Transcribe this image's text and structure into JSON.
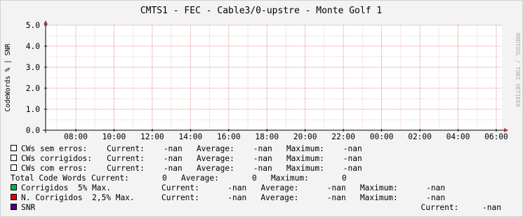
{
  "chart_data": {
    "type": "line",
    "title": "CMTS1 - FEC - Cable3/0-upstre - Monte Golf 1",
    "y_label": "CodeWords % | SNR",
    "watermark": "RRDTOOL / TOBI OETIKER",
    "categories": [
      "08:00",
      "10:00",
      "12:00",
      "14:00",
      "16:00",
      "18:00",
      "20:00",
      "22:00",
      "00:00",
      "02:00",
      "04:00",
      "06:00"
    ],
    "ylim": [
      0,
      5
    ],
    "yticks": [
      {
        "value": 0,
        "label": "0.0"
      },
      {
        "value": 1,
        "label": "1.0"
      },
      {
        "value": 2,
        "label": "2.0"
      },
      {
        "value": 3,
        "label": "3.0"
      },
      {
        "value": 4,
        "label": "4.0"
      },
      {
        "value": 5,
        "label": "5.0"
      }
    ],
    "yminorticks": [
      0.5,
      1.5,
      2.5,
      3.5,
      4.5
    ],
    "grid": true,
    "legend": [
      {
        "name": "CWs sem erros:",
        "color": "#ffffff",
        "stats": "Current:    -nan   Average:    -nan   Maximum:    -nan"
      },
      {
        "name": "CWs corrigidos:",
        "color": "#ffffff",
        "stats": "Current:    -nan   Average:    -nan   Maximum:    -nan"
      },
      {
        "name": "CWs com erros:",
        "color": "#ffffff",
        "stats": "Current:    -nan   Average:    -nan   Maximum:    -nan"
      },
      {
        "name": "Total Code Words",
        "stats": "Current:       0   Average:       0   Maximum:       0"
      },
      {
        "name": "Corrigidos  5% Max.",
        "color": "#00b050",
        "stats": "Current:      -nan   Average:      -nan   Maximum:      -nan"
      },
      {
        "name": "N. Corrigidos  2,5% Max.",
        "color": "#e00000",
        "stats": "Current:      -nan   Average:      -nan   Maximum:      -nan"
      },
      {
        "name": "SNR",
        "color": "#4b0082",
        "stats": "Current:     -nan"
      }
    ]
  }
}
